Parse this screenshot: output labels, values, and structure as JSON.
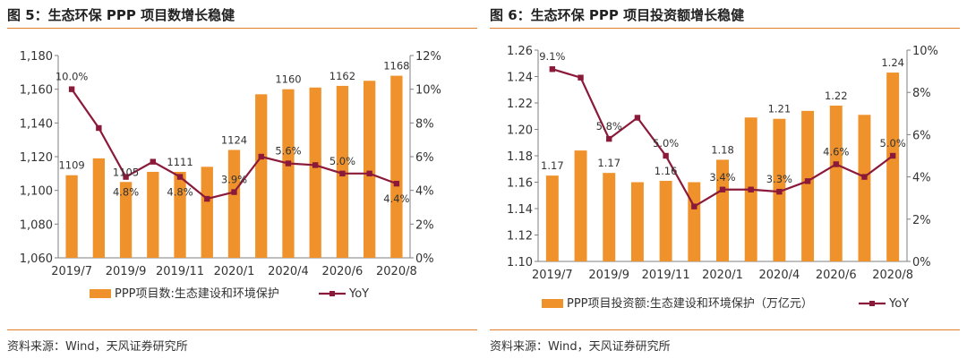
{
  "colors": {
    "bar": "#f0922b",
    "line": "#8b1a3a",
    "rule": "#e07d2a",
    "axis": "#7f7f7f",
    "text": "#333333"
  },
  "left": {
    "title": "图 5：生态环保 PPP 项目数增长稳健",
    "source": "资料来源：Wind，天风证券研究所",
    "chart_data": {
      "type": "bar+line",
      "title": "图 5：生态环保 PPP 项目数增长稳健",
      "categories": [
        "2019/7",
        "2019/8",
        "2019/9",
        "2019/10",
        "2019/11",
        "2019/12",
        "2020/1",
        "2020/2",
        "2020/4",
        "2020/5",
        "2020/6",
        "2020/7",
        "2020/8"
      ],
      "x_tick_labels": [
        "2019/7",
        "",
        "2019/9",
        "",
        "2019/11",
        "",
        "2020/1",
        "",
        "2020/4",
        "",
        "2020/6",
        "",
        "2020/8"
      ],
      "series": [
        {
          "name": "PPP项目数:生态建设和环境保护",
          "type": "bar",
          "axis": "left",
          "values": [
            1109,
            1119,
            1105,
            1111,
            1111,
            1114,
            1124,
            1157,
            1160,
            1161,
            1162,
            1165,
            1168
          ]
        },
        {
          "name": "YoY",
          "type": "line",
          "axis": "right",
          "values": [
            10.0,
            7.7,
            4.8,
            5.7,
            4.8,
            3.5,
            3.9,
            6.0,
            5.6,
            5.5,
            5.0,
            5.0,
            4.4
          ]
        }
      ],
      "bar_labels": [
        {
          "index": 0,
          "text": "1109"
        },
        {
          "index": 2,
          "text": "1105"
        },
        {
          "index": 4,
          "text": "1111"
        },
        {
          "index": 6,
          "text": "1124"
        },
        {
          "index": 8,
          "text": "1160"
        },
        {
          "index": 10,
          "text": "1162"
        },
        {
          "index": 12,
          "text": "1168"
        }
      ],
      "line_labels": [
        {
          "index": 0,
          "text": "10.0%"
        },
        {
          "index": 2,
          "text": "4.8%"
        },
        {
          "index": 4,
          "text": "4.8%"
        },
        {
          "index": 6,
          "text": "3.9%"
        },
        {
          "index": 8,
          "text": "5.6%"
        },
        {
          "index": 10,
          "text": "5.0%"
        },
        {
          "index": 12,
          "text": "4.4%"
        }
      ],
      "left_axis": {
        "min": 1060,
        "max": 1180,
        "ticks": [
          1060,
          1080,
          1100,
          1120,
          1140,
          1160,
          1180
        ],
        "tick_labels": [
          "1,060",
          "1,080",
          "1,100",
          "1,120",
          "1,140",
          "1,160",
          "1,180"
        ]
      },
      "right_axis": {
        "min": 0,
        "max": 12,
        "ticks": [
          0,
          2,
          4,
          6,
          8,
          10,
          12
        ],
        "tick_labels": [
          "0%",
          "2%",
          "4%",
          "6%",
          "8%",
          "10%",
          "12%"
        ]
      },
      "legend": {
        "placement": "bottom",
        "bar_label": "PPP项目数:生态建设和环境保护",
        "line_label": "YoY"
      },
      "grid": false
    }
  },
  "right": {
    "title": "图 6：生态环保 PPP 项目投资额增长稳健",
    "source": "资料来源：Wind，天风证券研究所",
    "chart_data": {
      "type": "bar+line",
      "title": "图 6：生态环保 PPP 项目投资额增长稳健",
      "categories": [
        "2019/7",
        "2019/8",
        "2019/9",
        "2019/10",
        "2019/11",
        "2019/12",
        "2020/1",
        "2020/2",
        "2020/4",
        "2020/5",
        "2020/6",
        "2020/7",
        "2020/8"
      ],
      "x_tick_labels": [
        "2019/7",
        "",
        "2019/9",
        "",
        "2019/11",
        "",
        "2020/1",
        "",
        "2020/4",
        "",
        "2020/6",
        "",
        "2020/8"
      ],
      "series": [
        {
          "name": "PPP项目投资额:生态建设和环境保护（万亿元）",
          "type": "bar",
          "axis": "left",
          "values": [
            1.165,
            1.184,
            1.167,
            1.16,
            1.161,
            1.16,
            1.177,
            1.209,
            1.208,
            1.214,
            1.218,
            1.211,
            1.243
          ]
        },
        {
          "name": "YoY",
          "type": "line",
          "axis": "right",
          "values": [
            9.1,
            8.7,
            5.8,
            6.8,
            5.0,
            2.6,
            3.4,
            3.4,
            3.3,
            3.8,
            4.6,
            4.0,
            5.0
          ]
        }
      ],
      "bar_labels": [
        {
          "index": 0,
          "text": "1.17"
        },
        {
          "index": 2,
          "text": "1.17"
        },
        {
          "index": 4,
          "text": "1.16"
        },
        {
          "index": 6,
          "text": "1.18"
        },
        {
          "index": 8,
          "text": "1.21"
        },
        {
          "index": 10,
          "text": "1.22"
        },
        {
          "index": 12,
          "text": "1.24"
        }
      ],
      "line_labels": [
        {
          "index": 0,
          "text": "9.1%"
        },
        {
          "index": 2,
          "text": "5.8%"
        },
        {
          "index": 4,
          "text": "5.0%"
        },
        {
          "index": 6,
          "text": "3.4%"
        },
        {
          "index": 8,
          "text": "3.3%"
        },
        {
          "index": 10,
          "text": "4.6%"
        },
        {
          "index": 12,
          "text": "5.0%"
        }
      ],
      "left_axis": {
        "min": 1.1,
        "max": 1.26,
        "ticks": [
          1.1,
          1.12,
          1.14,
          1.16,
          1.18,
          1.2,
          1.22,
          1.24,
          1.26
        ],
        "tick_labels": [
          "1.10",
          "1.12",
          "1.14",
          "1.16",
          "1.18",
          "1.20",
          "1.22",
          "1.24",
          "1.26"
        ]
      },
      "right_axis": {
        "min": 0,
        "max": 10,
        "ticks": [
          0,
          2,
          4,
          6,
          8,
          10
        ],
        "tick_labels": [
          "0%",
          "2%",
          "4%",
          "6%",
          "8%",
          "10%"
        ]
      },
      "legend": {
        "placement": "bottom",
        "bar_label": "PPP项目投资额:生态建设和环境保护（万亿元）",
        "line_label": "YoY"
      },
      "grid": false
    }
  }
}
